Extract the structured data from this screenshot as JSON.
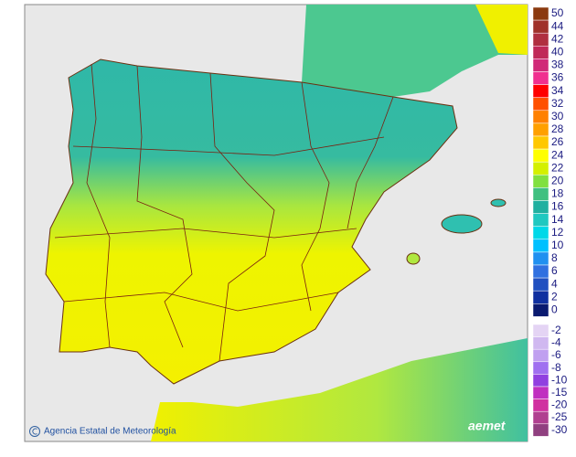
{
  "legend": [
    {
      "label": 50,
      "color": "#8b3a0f"
    },
    {
      "label": 44,
      "color": "#a0322a"
    },
    {
      "label": 42,
      "color": "#b03040"
    },
    {
      "label": 40,
      "color": "#c02a58"
    },
    {
      "label": 38,
      "color": "#d02a78"
    },
    {
      "label": 36,
      "color": "#f03090"
    },
    {
      "label": 34,
      "color": "#ff0000"
    },
    {
      "label": 32,
      "color": "#ff5000"
    },
    {
      "label": 30,
      "color": "#ff8000"
    },
    {
      "label": 28,
      "color": "#ffa000"
    },
    {
      "label": 26,
      "color": "#ffc800"
    },
    {
      "label": 24,
      "color": "#ffff00"
    },
    {
      "label": 22,
      "color": "#d4f000"
    },
    {
      "label": 20,
      "color": "#80e040"
    },
    {
      "label": 18,
      "color": "#40c080"
    },
    {
      "label": 16,
      "color": "#20b0a0"
    },
    {
      "label": 14,
      "color": "#20c8c0"
    },
    {
      "label": 12,
      "color": "#00d8e8"
    },
    {
      "label": 10,
      "color": "#00c0ff"
    },
    {
      "label": 8,
      "color": "#2090f0"
    },
    {
      "label": 6,
      "color": "#3070e0"
    },
    {
      "label": 4,
      "color": "#2050c0"
    },
    {
      "label": 2,
      "color": "#1030a0"
    },
    {
      "label": 0,
      "color": "#0a1a70"
    }
  ],
  "legend_negative": [
    {
      "label": -2,
      "color": "#e4d4f4"
    },
    {
      "label": -4,
      "color": "#d0b8f0"
    },
    {
      "label": -6,
      "color": "#c0a0f0"
    },
    {
      "label": -8,
      "color": "#a070f0"
    },
    {
      "label": -10,
      "color": "#9040e0"
    },
    {
      "label": -15,
      "color": "#c030c0"
    },
    {
      "label": -20,
      "color": "#d030a0"
    },
    {
      "label": -25,
      "color": "#b04090"
    },
    {
      "label": -30,
      "color": "#904080"
    }
  ],
  "credit": "Agencia Estatal de Meteorología",
  "logo": "aemet"
}
